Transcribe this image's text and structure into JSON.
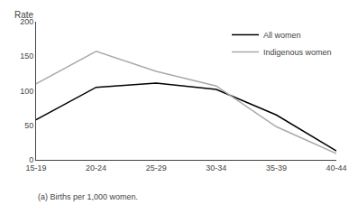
{
  "chart_data": {
    "type": "line",
    "categories": [
      "15-19",
      "20-24",
      "25-29",
      "30-34",
      "35-39",
      "40-44"
    ],
    "series": [
      {
        "name": "All women",
        "color": "#000000",
        "values": [
          58,
          105,
          111,
          102,
          65,
          13
        ]
      },
      {
        "name": "Indigenous women",
        "color": "#aaaaaa",
        "values": [
          110,
          157,
          128,
          107,
          48,
          9
        ]
      }
    ],
    "ylabel": "Rate",
    "footnote": "(a) Births per 1,000 women.",
    "ylim": [
      0,
      200
    ],
    "yticks": [
      0,
      50,
      100,
      150,
      200
    ],
    "grid": false,
    "legend": "upper right"
  }
}
